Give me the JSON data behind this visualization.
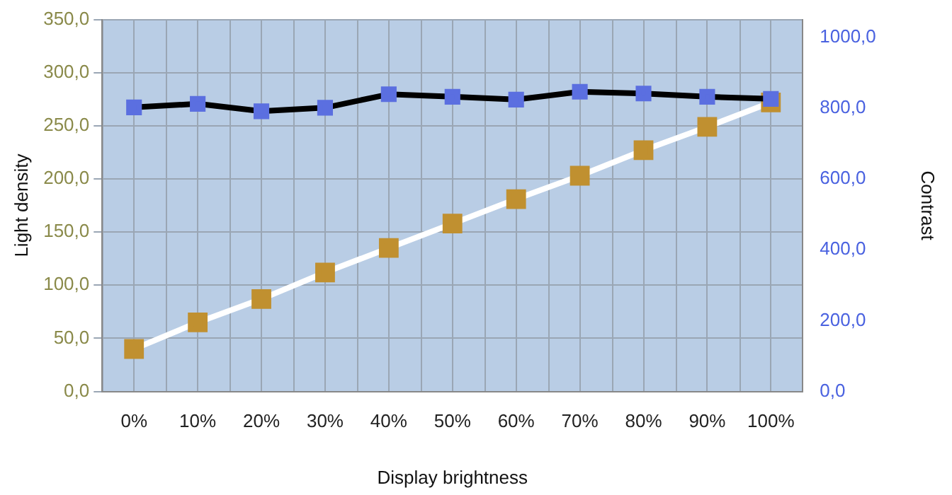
{
  "chart_data": {
    "type": "line",
    "xlabel": "Display brightness",
    "ylabel": "Light density",
    "y2label": "Contrast",
    "categories": [
      "0%",
      "10%",
      "20%",
      "30%",
      "40%",
      "50%",
      "60%",
      "70%",
      "80%",
      "90%",
      "100%"
    ],
    "series": [
      {
        "color": "#000000",
        "colors": [
          "#5b6fe0",
          "#5b6fe0",
          "#5b6fe0",
          "#5b6fe0",
          "#5b6fe0",
          "#5b6fe0",
          "#5b6fe0",
          "#5b6fe0",
          "#5b6fe0",
          "#5b6fe0",
          "#5b6fe0"
        ],
        "axis": "y2",
        "values": [
          802,
          812,
          791,
          801,
          839,
          832,
          824,
          846,
          841,
          832,
          826
        ]
      },
      {
        "color": "#ffffff",
        "colors": [
          "#c09030",
          "#c09030",
          "#c09030",
          "#c09030",
          "#c09030",
          "#c09030",
          "#c09030",
          "#c09030",
          "#c09030",
          "#c09030",
          "#c09030"
        ],
        "values": [
          40,
          65,
          87,
          112,
          135,
          158,
          181,
          203,
          227,
          249,
          272
        ]
      }
    ],
    "ylim": [
      0,
      350
    ],
    "yticks": [
      {
        "value": 0,
        "label": "0,0"
      },
      {
        "value": 50,
        "label": "50,0"
      },
      {
        "value": 100,
        "label": "100,0"
      },
      {
        "value": 150,
        "label": "150,0"
      },
      {
        "value": 200,
        "label": "200,0"
      },
      {
        "value": 250,
        "label": "250,0"
      },
      {
        "value": 300,
        "label": "300,0"
      },
      {
        "value": 350,
        "label": "350,0"
      }
    ],
    "y2lim": [
      0,
      1050
    ],
    "y2ticks": [
      {
        "value": 0,
        "label": "0,0"
      },
      {
        "value": 200,
        "label": "200,0"
      },
      {
        "value": 400,
        "label": "400,0"
      },
      {
        "value": 600,
        "label": "600,0"
      },
      {
        "value": 800,
        "label": "800,0"
      },
      {
        "value": 1000,
        "label": "1000,0"
      }
    ],
    "grid": true,
    "legend": false,
    "marker": "square",
    "line_style": "solid"
  }
}
